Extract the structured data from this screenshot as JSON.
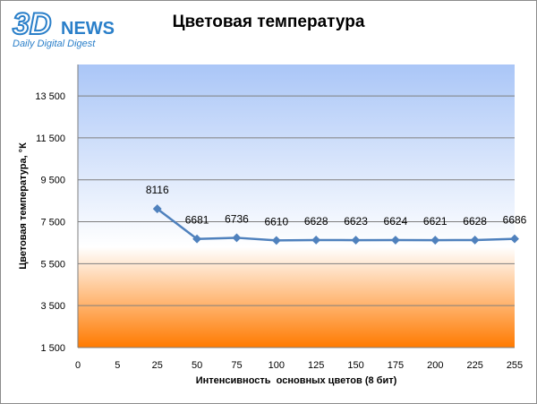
{
  "logo": {
    "brand_number": "3D",
    "brand_word": "NEWS",
    "tagline": "Daily Digital Digest"
  },
  "colors": {
    "gradient_top": "#aac6f7",
    "gradient_mid": "#ffffff",
    "gradient_bottom": "#ff7a00",
    "series_line": "#4f81bd",
    "gridline": "#7f7f7f"
  },
  "chart_data": {
    "type": "line",
    "title": "Цветовая температура",
    "xlabel": "Интенсивность  основных цветов (8 бит)",
    "ylabel": "Цветовая температура, °К",
    "x_ticks": [
      "0",
      "5",
      "25",
      "50",
      "75",
      "100",
      "125",
      "150",
      "175",
      "200",
      "225",
      "255"
    ],
    "y_ticks": [
      "1 500",
      "3 500",
      "5 500",
      "7 500",
      "9 500",
      "11 500",
      "13 500"
    ],
    "y_tick_values": [
      1500,
      3500,
      5500,
      7500,
      9500,
      11500,
      13500
    ],
    "ylim": [
      1500,
      15000
    ],
    "grid": true,
    "legend": "none",
    "series": [
      {
        "x": [
          "25",
          "50",
          "75",
          "100",
          "125",
          "150",
          "175",
          "200",
          "225",
          "255"
        ],
        "values": [
          8116,
          6681,
          6736,
          6610,
          6628,
          6623,
          6624,
          6621,
          6628,
          6686
        ],
        "labels": [
          "8116",
          "6681",
          "6736",
          "6610",
          "6628",
          "6623",
          "6624",
          "6621",
          "6628",
          "6686"
        ]
      }
    ]
  }
}
